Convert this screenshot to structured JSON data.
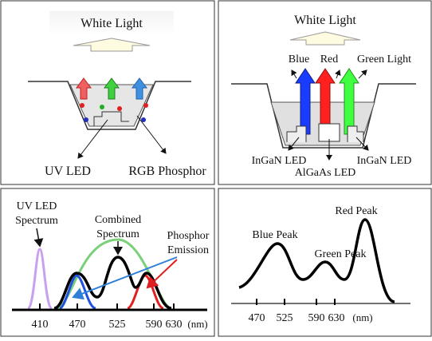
{
  "panels": [
    {
      "title": "White Light",
      "labels": [
        "UV LED",
        "RGB Phosphor"
      ]
    },
    {
      "title": "White Light",
      "labels": [
        "Blue",
        "Red",
        "Green Light",
        "InGaN LED",
        "InGaN LED",
        "AlGaAs LED"
      ]
    },
    {
      "labels": [
        [
          "UV LED",
          "Spectrum"
        ],
        [
          "Combined",
          "Spectrum"
        ],
        [
          "Phosphor",
          "Emission"
        ]
      ],
      "ticks": [
        "410",
        "470",
        "525",
        "590",
        "630",
        "(nm)"
      ]
    },
    {
      "labels": [
        "Red Peak",
        "Blue Peak",
        "Green Peak"
      ],
      "ticks": [
        "470",
        "525",
        "590",
        "630",
        "(nm)"
      ]
    }
  ]
}
